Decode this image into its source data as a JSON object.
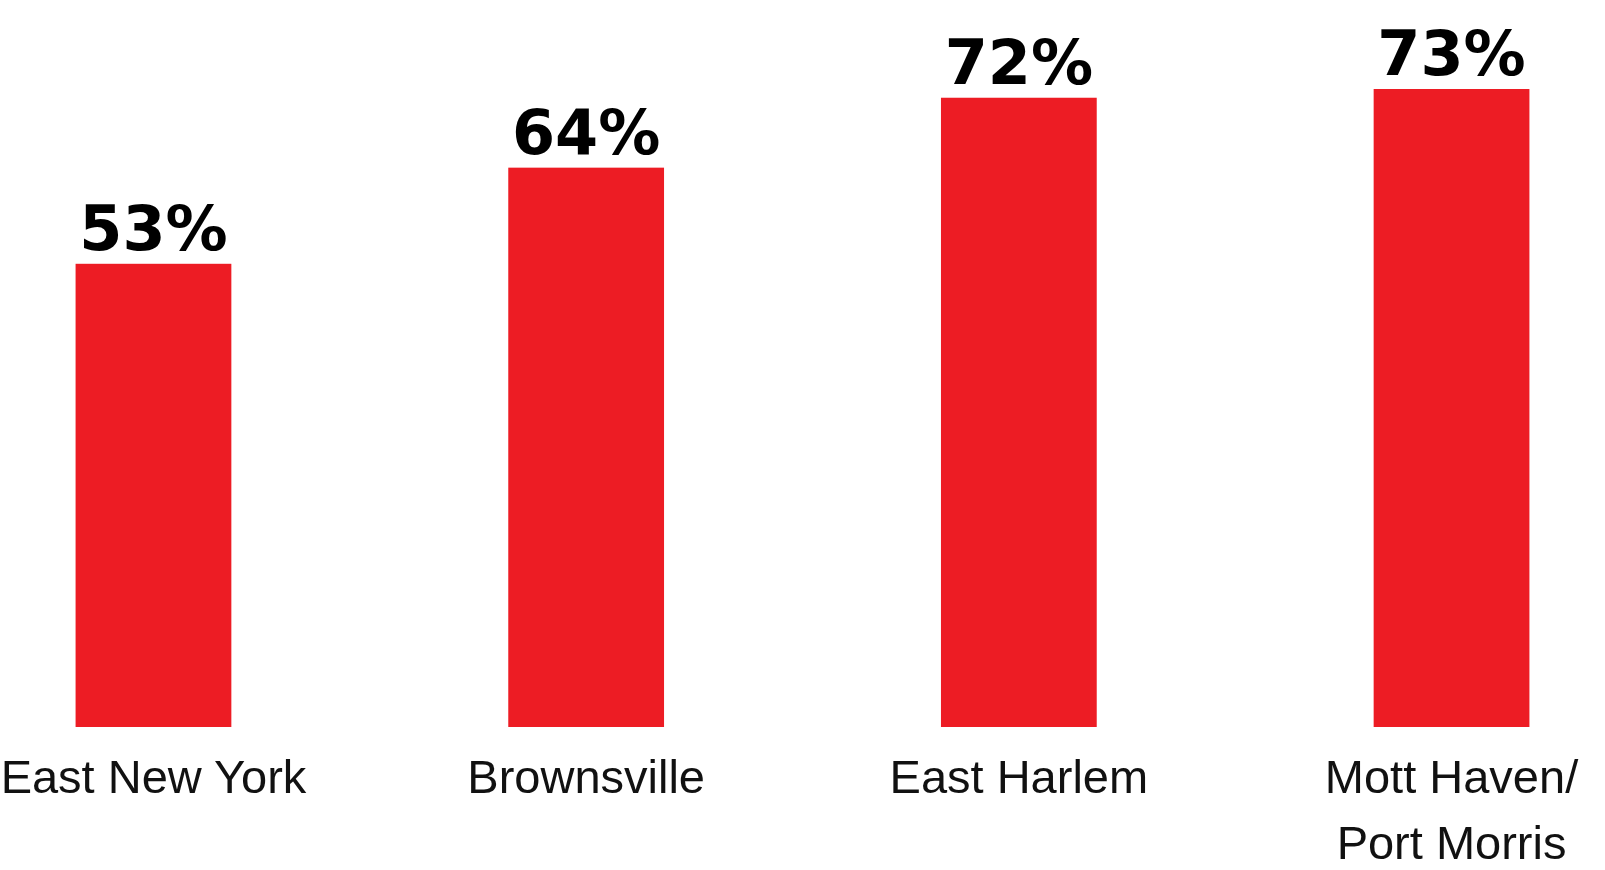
{
  "chart_data": {
    "type": "bar",
    "categories": [
      "East New York",
      "Brownsville",
      "East Harlem",
      "Mott Haven/\nPort Morris"
    ],
    "values": [
      53,
      64,
      72,
      73
    ],
    "color": "#ed1c24",
    "value_labels": [
      "53%",
      "64%",
      "72%",
      "73%"
    ]
  }
}
